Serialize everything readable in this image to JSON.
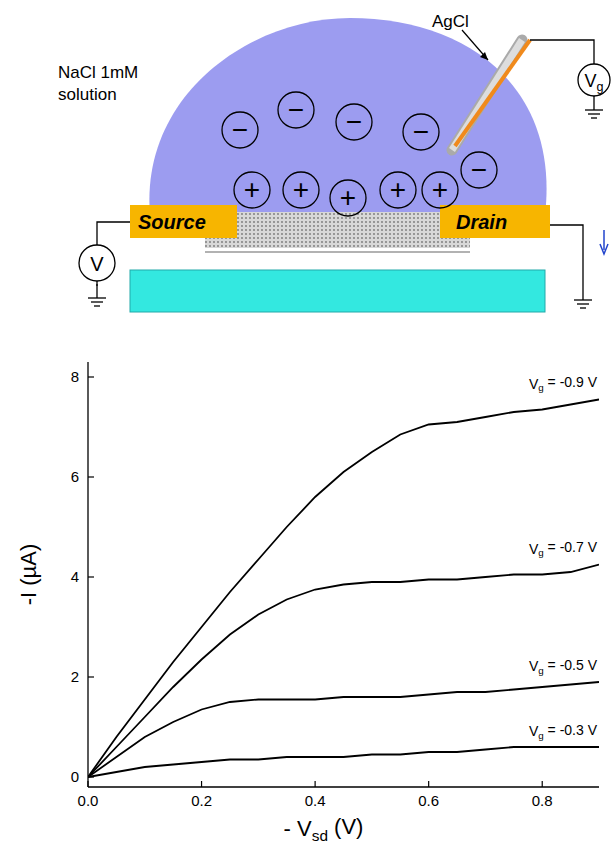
{
  "diagram": {
    "electrode_label": "AgCl",
    "solution_label": [
      "NaCl 1mM",
      "solution"
    ],
    "source": "Source",
    "drain": "Drain",
    "source_meter": "V",
    "gate_meter": "Vg",
    "negative_ion": "−",
    "positive_ion": "+"
  },
  "chart_data": {
    "type": "line",
    "x_label": "- Vsd (V)",
    "y_label": "-I (µA)",
    "x": [
      0.0,
      0.05,
      0.1,
      0.15,
      0.2,
      0.25,
      0.3,
      0.35,
      0.4,
      0.45,
      0.5,
      0.55,
      0.6,
      0.65,
      0.7,
      0.75,
      0.8,
      0.85,
      0.9
    ],
    "series": [
      {
        "name": "Vg = -0.9 V",
        "color": "#000000",
        "values": [
          0,
          0.8,
          1.55,
          2.3,
          3.0,
          3.7,
          4.35,
          5.0,
          5.6,
          6.1,
          6.5,
          6.85,
          7.05,
          7.1,
          7.2,
          7.3,
          7.35,
          7.45,
          7.55
        ]
      },
      {
        "name": "Vg = -0.7 V",
        "color": "#000000",
        "values": [
          0,
          0.6,
          1.2,
          1.8,
          2.35,
          2.85,
          3.25,
          3.55,
          3.75,
          3.85,
          3.9,
          3.9,
          3.95,
          3.95,
          4.0,
          4.05,
          4.05,
          4.1,
          4.25
        ]
      },
      {
        "name": "Vg = -0.5 V",
        "color": "#000000",
        "values": [
          0,
          0.4,
          0.8,
          1.1,
          1.35,
          1.5,
          1.55,
          1.55,
          1.55,
          1.6,
          1.6,
          1.6,
          1.65,
          1.7,
          1.7,
          1.75,
          1.8,
          1.85,
          1.9
        ]
      },
      {
        "name": "Vg = -0.3 V",
        "color": "#000000",
        "values": [
          0,
          0.1,
          0.2,
          0.25,
          0.3,
          0.35,
          0.35,
          0.4,
          0.4,
          0.4,
          0.45,
          0.45,
          0.5,
          0.5,
          0.55,
          0.6,
          0.6,
          0.6,
          0.6
        ]
      }
    ],
    "xlim": [
      0,
      0.9
    ],
    "ylim": [
      -0.2,
      8.3
    ],
    "xticks": [
      {
        "value": 0,
        "label": "0.0"
      },
      0.2,
      0.4,
      0.6,
      0.8
    ],
    "yticks": [
      0,
      2,
      4,
      6,
      8
    ],
    "grid": false,
    "marker": "none",
    "line_style": "solid"
  }
}
